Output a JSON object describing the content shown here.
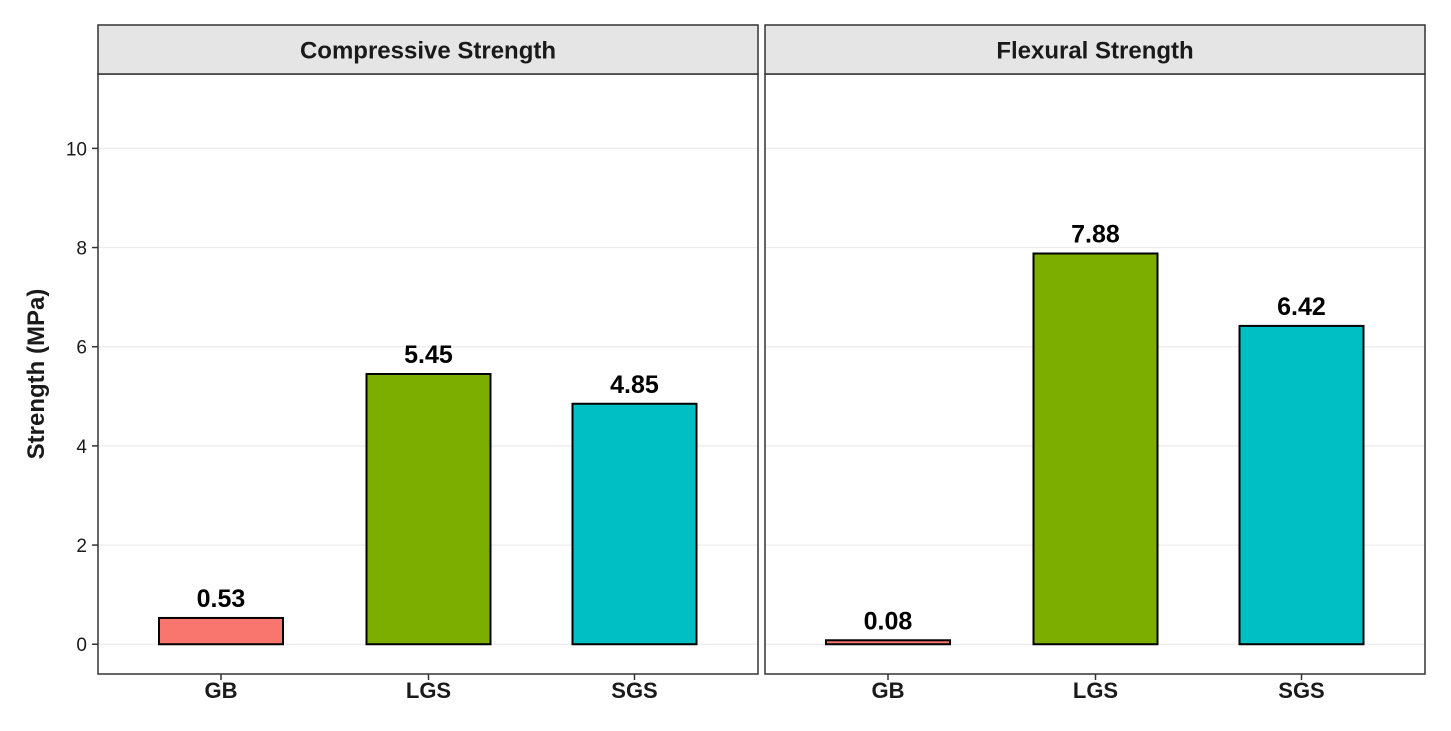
{
  "chart_data": {
    "type": "bar",
    "ylabel": "Strength (MPa)",
    "ylim": [
      -0.6,
      11.5
    ],
    "y_ticks": [
      0,
      2,
      4,
      6,
      8,
      10
    ],
    "y_tick_labels": [
      "0",
      "2",
      "4",
      "6",
      "8",
      "10"
    ],
    "grid": true,
    "categories": [
      "GB",
      "LGS",
      "SGS"
    ],
    "colors": [
      "#F8766D",
      "#7CAE00",
      "#00BFC4"
    ],
    "panels": [
      {
        "title": "Compressive Strength",
        "values": [
          0.53,
          5.45,
          4.85
        ],
        "value_labels": [
          "0.53",
          "5.45",
          "4.85"
        ]
      },
      {
        "title": "Flexural Strength",
        "values": [
          0.08,
          7.88,
          6.42
        ],
        "value_labels": [
          "0.08",
          "7.88",
          "6.42"
        ]
      }
    ]
  }
}
